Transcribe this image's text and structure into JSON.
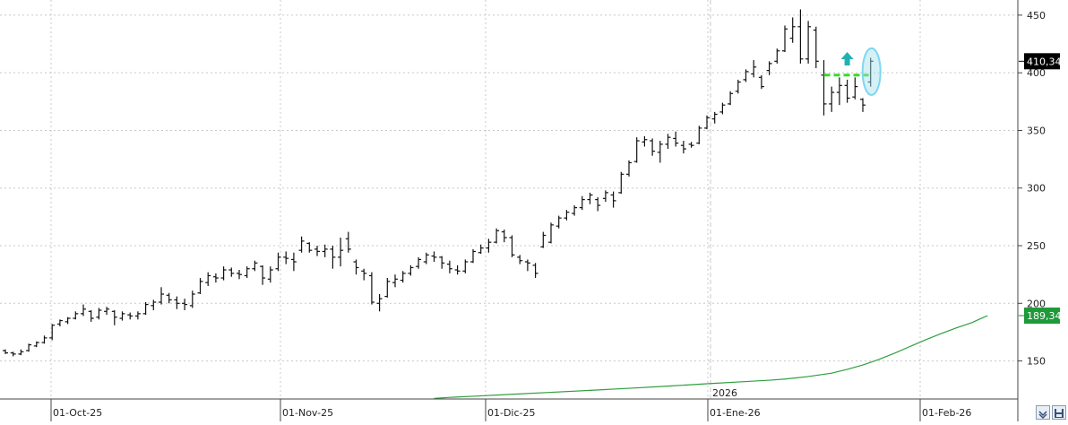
{
  "chart_data": {
    "type": "ohlc",
    "x_labels": [
      "01-Oct-25",
      "01-Nov-25",
      "01-Dic-25",
      "01-Ene-26",
      "01-Feb-26"
    ],
    "year_label": "2026",
    "y_ticks": [
      150,
      200,
      250,
      300,
      350,
      400,
      450
    ],
    "ylim": [
      117,
      465
    ],
    "price_badge": "410,34",
    "ma_badge": "189,34",
    "resistance_level": 398,
    "bars": [
      {
        "h": 160,
        "l": 156,
        "o": 159,
        "c": 157
      },
      {
        "h": 158,
        "l": 154,
        "o": 157,
        "c": 156
      },
      {
        "h": 160,
        "l": 155,
        "o": 156,
        "c": 158
      },
      {
        "h": 165,
        "l": 158,
        "o": 159,
        "c": 164
      },
      {
        "h": 167,
        "l": 162,
        "o": 163,
        "c": 166
      },
      {
        "h": 172,
        "l": 165,
        "o": 166,
        "c": 170
      },
      {
        "h": 182,
        "l": 168,
        "o": 170,
        "c": 181
      },
      {
        "h": 186,
        "l": 180,
        "o": 182,
        "c": 185
      },
      {
        "h": 188,
        "l": 182,
        "o": 184,
        "c": 187
      },
      {
        "h": 193,
        "l": 186,
        "o": 187,
        "c": 191
      },
      {
        "h": 199,
        "l": 189,
        "o": 191,
        "c": 195
      },
      {
        "h": 194,
        "l": 184,
        "o": 193,
        "c": 187
      },
      {
        "h": 196,
        "l": 186,
        "o": 188,
        "c": 194
      },
      {
        "h": 197,
        "l": 190,
        "o": 193,
        "c": 195
      },
      {
        "h": 194,
        "l": 181,
        "o": 193,
        "c": 188
      },
      {
        "h": 193,
        "l": 185,
        "o": 187,
        "c": 191
      },
      {
        "h": 192,
        "l": 186,
        "o": 190,
        "c": 189
      },
      {
        "h": 193,
        "l": 186,
        "o": 189,
        "c": 191
      },
      {
        "h": 201,
        "l": 190,
        "o": 191,
        "c": 199
      },
      {
        "h": 203,
        "l": 194,
        "o": 198,
        "c": 201
      },
      {
        "h": 214,
        "l": 199,
        "o": 201,
        "c": 208
      },
      {
        "h": 209,
        "l": 200,
        "o": 207,
        "c": 203
      },
      {
        "h": 206,
        "l": 195,
        "o": 203,
        "c": 200
      },
      {
        "h": 204,
        "l": 194,
        "o": 200,
        "c": 199
      },
      {
        "h": 211,
        "l": 196,
        "o": 198,
        "c": 208
      },
      {
        "h": 222,
        "l": 208,
        "o": 209,
        "c": 219
      },
      {
        "h": 227,
        "l": 215,
        "o": 218,
        "c": 224
      },
      {
        "h": 226,
        "l": 218,
        "o": 223,
        "c": 222
      },
      {
        "h": 232,
        "l": 220,
        "o": 222,
        "c": 229
      },
      {
        "h": 231,
        "l": 223,
        "o": 229,
        "c": 226
      },
      {
        "h": 229,
        "l": 221,
        "o": 226,
        "c": 225
      },
      {
        "h": 232,
        "l": 222,
        "o": 224,
        "c": 230
      },
      {
        "h": 237,
        "l": 228,
        "o": 230,
        "c": 235
      },
      {
        "h": 233,
        "l": 216,
        "o": 232,
        "c": 222
      },
      {
        "h": 232,
        "l": 218,
        "o": 221,
        "c": 229
      },
      {
        "h": 244,
        "l": 228,
        "o": 230,
        "c": 240
      },
      {
        "h": 245,
        "l": 234,
        "o": 240,
        "c": 239
      },
      {
        "h": 244,
        "l": 228,
        "o": 238,
        "c": 236
      },
      {
        "h": 258,
        "l": 244,
        "o": 246,
        "c": 254
      },
      {
        "h": 253,
        "l": 244,
        "o": 252,
        "c": 246
      },
      {
        "h": 250,
        "l": 241,
        "o": 247,
        "c": 245
      },
      {
        "h": 251,
        "l": 240,
        "o": 245,
        "c": 247
      },
      {
        "h": 250,
        "l": 230,
        "o": 247,
        "c": 240
      },
      {
        "h": 257,
        "l": 232,
        "o": 240,
        "c": 246
      },
      {
        "h": 262,
        "l": 244,
        "o": 256,
        "c": 247
      },
      {
        "h": 238,
        "l": 225,
        "o": 236,
        "c": 231
      },
      {
        "h": 230,
        "l": 220,
        "o": 228,
        "c": 226
      },
      {
        "h": 227,
        "l": 199,
        "o": 224,
        "c": 201
      },
      {
        "h": 208,
        "l": 193,
        "o": 200,
        "c": 204
      },
      {
        "h": 222,
        "l": 205,
        "o": 206,
        "c": 219
      },
      {
        "h": 225,
        "l": 214,
        "o": 218,
        "c": 221
      },
      {
        "h": 228,
        "l": 218,
        "o": 220,
        "c": 226
      },
      {
        "h": 233,
        "l": 224,
        "o": 226,
        "c": 231
      },
      {
        "h": 240,
        "l": 230,
        "o": 232,
        "c": 238
      },
      {
        "h": 244,
        "l": 234,
        "o": 236,
        "c": 242
      },
      {
        "h": 245,
        "l": 236,
        "o": 241,
        "c": 240
      },
      {
        "h": 241,
        "l": 230,
        "o": 240,
        "c": 235
      },
      {
        "h": 237,
        "l": 226,
        "o": 234,
        "c": 230
      },
      {
        "h": 233,
        "l": 225,
        "o": 229,
        "c": 228
      },
      {
        "h": 238,
        "l": 226,
        "o": 228,
        "c": 236
      },
      {
        "h": 247,
        "l": 235,
        "o": 236,
        "c": 245
      },
      {
        "h": 251,
        "l": 243,
        "o": 244,
        "c": 248
      },
      {
        "h": 256,
        "l": 244,
        "o": 248,
        "c": 253
      },
      {
        "h": 265,
        "l": 252,
        "o": 253,
        "c": 263
      },
      {
        "h": 264,
        "l": 253,
        "o": 262,
        "c": 257
      },
      {
        "h": 259,
        "l": 240,
        "o": 257,
        "c": 242
      },
      {
        "h": 242,
        "l": 234,
        "o": 240,
        "c": 237
      },
      {
        "h": 238,
        "l": 228,
        "o": 236,
        "c": 235
      },
      {
        "h": 235,
        "l": 222,
        "o": 233,
        "c": 226
      },
      {
        "h": 262,
        "l": 248,
        "o": 249,
        "c": 259
      },
      {
        "h": 270,
        "l": 252,
        "o": 253,
        "c": 268
      },
      {
        "h": 276,
        "l": 265,
        "o": 267,
        "c": 274
      },
      {
        "h": 281,
        "l": 272,
        "o": 274,
        "c": 279
      },
      {
        "h": 285,
        "l": 276,
        "o": 278,
        "c": 283
      },
      {
        "h": 293,
        "l": 281,
        "o": 283,
        "c": 290
      },
      {
        "h": 296,
        "l": 286,
        "o": 290,
        "c": 294
      },
      {
        "h": 292,
        "l": 280,
        "o": 290,
        "c": 285
      },
      {
        "h": 298,
        "l": 288,
        "o": 291,
        "c": 296
      },
      {
        "h": 297,
        "l": 283,
        "o": 294,
        "c": 289
      },
      {
        "h": 314,
        "l": 295,
        "o": 296,
        "c": 312
      },
      {
        "h": 324,
        "l": 310,
        "o": 312,
        "c": 322
      },
      {
        "h": 344,
        "l": 322,
        "o": 323,
        "c": 341
      },
      {
        "h": 345,
        "l": 336,
        "o": 340,
        "c": 342
      },
      {
        "h": 343,
        "l": 328,
        "o": 341,
        "c": 332
      },
      {
        "h": 341,
        "l": 322,
        "o": 331,
        "c": 338
      },
      {
        "h": 347,
        "l": 334,
        "o": 338,
        "c": 344
      },
      {
        "h": 349,
        "l": 336,
        "o": 343,
        "c": 339
      },
      {
        "h": 341,
        "l": 330,
        "o": 337,
        "c": 334
      },
      {
        "h": 340,
        "l": 335,
        "o": 338,
        "c": 337
      },
      {
        "h": 354,
        "l": 338,
        "o": 339,
        "c": 352
      },
      {
        "h": 363,
        "l": 351,
        "o": 352,
        "c": 361
      },
      {
        "h": 366,
        "l": 356,
        "o": 360,
        "c": 364
      },
      {
        "h": 374,
        "l": 364,
        "o": 366,
        "c": 372
      },
      {
        "h": 384,
        "l": 372,
        "o": 373,
        "c": 382
      },
      {
        "h": 394,
        "l": 382,
        "o": 384,
        "c": 392
      },
      {
        "h": 403,
        "l": 392,
        "o": 394,
        "c": 401
      },
      {
        "h": 411,
        "l": 396,
        "o": 399,
        "c": 405
      },
      {
        "h": 398,
        "l": 386,
        "o": 396,
        "c": 388
      },
      {
        "h": 410,
        "l": 398,
        "o": 402,
        "c": 408
      },
      {
        "h": 421,
        "l": 408,
        "o": 410,
        "c": 419
      },
      {
        "h": 441,
        "l": 418,
        "o": 419,
        "c": 438
      },
      {
        "h": 448,
        "l": 426,
        "o": 430,
        "c": 440
      },
      {
        "h": 455,
        "l": 408,
        "o": 440,
        "c": 412
      },
      {
        "h": 445,
        "l": 408,
        "o": 412,
        "c": 440
      },
      {
        "h": 440,
        "l": 404,
        "o": 437,
        "c": 410
      },
      {
        "h": 411,
        "l": 363,
        "o": 398,
        "c": 373
      },
      {
        "h": 388,
        "l": 366,
        "o": 373,
        "c": 383
      },
      {
        "h": 396,
        "l": 372,
        "o": 383,
        "c": 389
      },
      {
        "h": 394,
        "l": 374,
        "o": 389,
        "c": 378
      },
      {
        "h": 396,
        "l": 377,
        "o": 379,
        "c": 388
      },
      {
        "h": 378,
        "l": 366,
        "o": 377,
        "c": 372
      },
      {
        "h": 413,
        "l": 388,
        "o": 392,
        "c": 410
      }
    ],
    "moving_average": [
      [
        55,
        117.5
      ],
      [
        57,
        118.4
      ],
      [
        60,
        119.4
      ],
      [
        65,
        121.1
      ],
      [
        70,
        122.8
      ],
      [
        75,
        124.5
      ],
      [
        80,
        126.3
      ],
      [
        85,
        128.2
      ],
      [
        90,
        130.2
      ],
      [
        95,
        132.1
      ],
      [
        98,
        133.3
      ],
      [
        100,
        134.3
      ],
      [
        103,
        136.5
      ],
      [
        106,
        139.4
      ],
      [
        108,
        142.7
      ],
      [
        110,
        146.5
      ],
      [
        112,
        151.2
      ],
      [
        114,
        156.5
      ],
      [
        116,
        162.4
      ],
      [
        118,
        168.2
      ],
      [
        120,
        173.6
      ],
      [
        122,
        178.7
      ],
      [
        124,
        183.3
      ],
      [
        125,
        186.4
      ],
      [
        126,
        189.34
      ]
    ]
  }
}
